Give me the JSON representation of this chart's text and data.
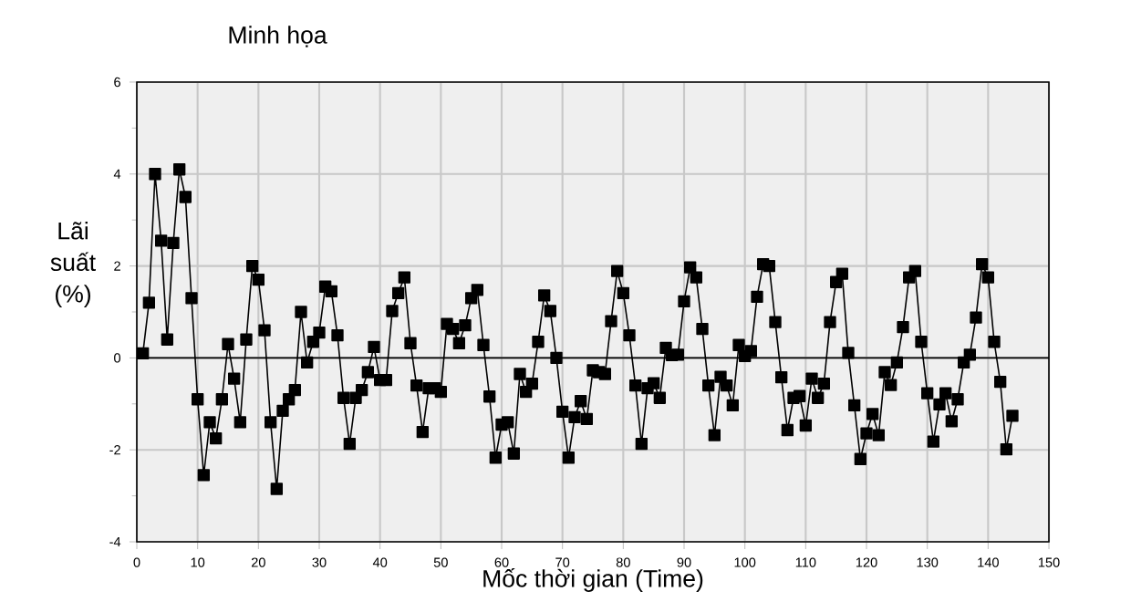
{
  "chart_data": {
    "type": "line",
    "title": "Minh họa",
    "xlabel": "Mốc thời gian (Time)",
    "ylabel": "Lãi suất (%)",
    "x": [
      1,
      2,
      3,
      4,
      5,
      6,
      7,
      8,
      9,
      10,
      11,
      12,
      13,
      14,
      15,
      16,
      17,
      18,
      19,
      20,
      21,
      22,
      23,
      24,
      25,
      26,
      27,
      28,
      29,
      30,
      31,
      32,
      33,
      34,
      35,
      36,
      37,
      38,
      39,
      40,
      41,
      42,
      43,
      44,
      45,
      46,
      47,
      48,
      49,
      50,
      51,
      52,
      53,
      54,
      55,
      56,
      57,
      58,
      59,
      60,
      61,
      62,
      63,
      64,
      65,
      66,
      67,
      68,
      69,
      70,
      71,
      72,
      73,
      74,
      75,
      76,
      77,
      78,
      79,
      80,
      81,
      82,
      83,
      84,
      85,
      86,
      87,
      88,
      89,
      90,
      91,
      92,
      93,
      94,
      95,
      96,
      97,
      98,
      99,
      100,
      101,
      102,
      103,
      104,
      105,
      106,
      107,
      108,
      109,
      110,
      111,
      112,
      113,
      114,
      115,
      116,
      117,
      118,
      119,
      120,
      121,
      122,
      123,
      124,
      125,
      126,
      127,
      128,
      129,
      130,
      131,
      132,
      133,
      134,
      135,
      136,
      137,
      138,
      139,
      140,
      141,
      142,
      143,
      144
    ],
    "series": [
      {
        "color": "#000000",
        "values": [
          0.1,
          1.2,
          4.0,
          2.55,
          0.4,
          2.5,
          4.1,
          3.5,
          1.3,
          -0.9,
          -2.55,
          -1.4,
          -1.75,
          -0.9,
          0.3,
          -0.45,
          -1.4,
          0.4,
          2.0,
          1.7,
          0.6,
          -1.4,
          -2.85,
          -1.15,
          -0.9,
          -0.7,
          1.0,
          -0.1,
          0.35,
          0.55,
          1.55,
          1.45,
          0.49,
          -0.87,
          -1.87,
          -0.87,
          -0.7,
          -0.31,
          0.24,
          -0.48,
          -0.48,
          1.02,
          1.41,
          1.75,
          0.32,
          -0.6,
          -1.61,
          -0.66,
          -0.66,
          -0.74,
          0.74,
          0.63,
          0.32,
          0.71,
          1.3,
          1.48,
          0.28,
          -0.84,
          -2.17,
          -1.45,
          -1.4,
          -2.08,
          -0.35,
          -0.74,
          -0.56,
          0.35,
          1.36,
          1.02,
          0.0,
          -1.17,
          -2.17,
          -1.29,
          -0.94,
          -1.33,
          -0.27,
          -0.31,
          -0.35,
          0.8,
          1.89,
          1.41,
          0.49,
          -0.6,
          -1.87,
          -0.66,
          -0.55,
          -0.87,
          0.22,
          0.06,
          0.07,
          1.23,
          1.97,
          1.75,
          0.63,
          -0.6,
          -1.68,
          -0.41,
          -0.6,
          -1.03,
          0.28,
          0.04,
          0.15,
          1.33,
          2.04,
          2.0,
          0.78,
          -0.42,
          -1.57,
          -0.87,
          -0.83,
          -1.47,
          -0.45,
          -0.87,
          -0.56,
          0.78,
          1.65,
          1.83,
          0.11,
          -1.03,
          -2.2,
          -1.64,
          -1.22,
          -1.68,
          -0.31,
          -0.59,
          -0.1,
          0.67,
          1.75,
          1.89,
          0.35,
          -0.77,
          -1.82,
          -1.01,
          -0.77,
          -1.38,
          -0.9,
          -0.1,
          0.07,
          0.88,
          2.04,
          1.75,
          0.35,
          -0.52,
          -1.99,
          -1.26
        ]
      }
    ],
    "xlim": [
      0,
      150
    ],
    "xticks": [
      0,
      10,
      20,
      30,
      40,
      50,
      60,
      70,
      80,
      90,
      100,
      110,
      120,
      130,
      140,
      150
    ],
    "ylim": [
      -4,
      6
    ],
    "yticks": [
      -4,
      -2,
      0,
      2,
      4,
      6
    ],
    "ref_lines": [
      {
        "axis": "y",
        "value": 0,
        "color": "#000000"
      }
    ],
    "grid": true,
    "marker": "square",
    "line_style": "solid"
  }
}
